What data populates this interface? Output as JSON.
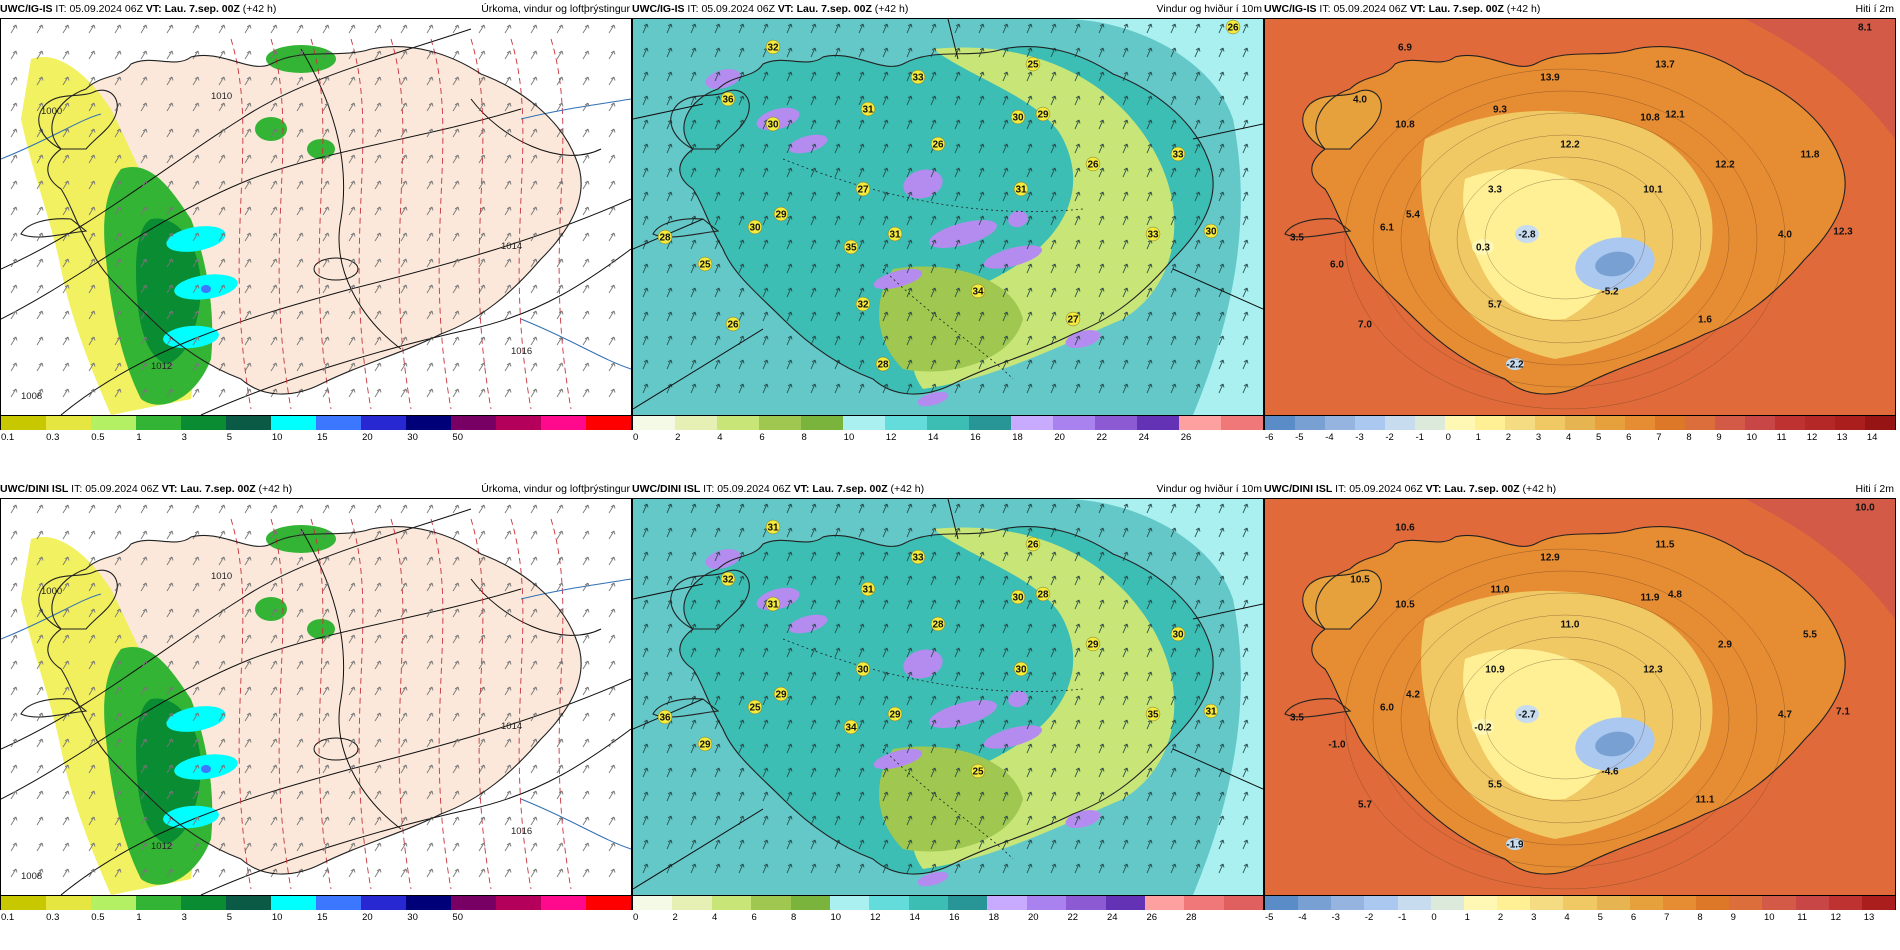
{
  "panels": [
    {
      "id": "top-precip",
      "model": "UWC/IG-IS",
      "run_label": "IT:",
      "run": "05.09.2024 06Z",
      "vt_label": "VT:",
      "vt": "Lau. 7.sep. 00Z",
      "lead": "(+42 h)",
      "variable": "Úrkoma, vindur og loftþrýstingur",
      "type": "precip"
    },
    {
      "id": "top-wind",
      "model": "UWC/IG-IS",
      "run_label": "IT:",
      "run": "05.09.2024 06Z",
      "vt_label": "VT:",
      "vt": "Lau. 7.sep. 00Z",
      "lead": "(+42 h)",
      "variable": "Vindur og hviður í 10m",
      "type": "wind"
    },
    {
      "id": "top-temp",
      "model": "UWC/IG-IS",
      "run_label": "IT:",
      "run": "05.09.2024 06Z",
      "vt_label": "VT:",
      "vt": "Lau. 7.sep. 00Z",
      "lead": "(+42 h)",
      "variable": "Hiti í 2m",
      "type": "temp"
    },
    {
      "id": "bot-precip",
      "model": "UWC/DINI ISL",
      "run_label": "IT:",
      "run": "05.09.2024 06Z",
      "vt_label": "VT:",
      "vt": "Lau. 7.sep. 00Z",
      "lead": "(+42 h)",
      "variable": "Úrkoma, vindur og loftþrýstingur",
      "type": "precip"
    },
    {
      "id": "bot-wind",
      "model": "UWC/DINI ISL",
      "run_label": "IT:",
      "run": "05.09.2024 06Z",
      "vt_label": "VT:",
      "vt": "Lau. 7.sep. 00Z",
      "lead": "(+42 h)",
      "variable": "Vindur og hviður í 10m",
      "type": "wind"
    },
    {
      "id": "bot-temp",
      "model": "UWC/DINI ISL",
      "run_label": "IT:",
      "run": "05.09.2024 06Z",
      "vt_label": "VT:",
      "vt": "Lau. 7.sep. 00Z",
      "lead": "(+42 h)",
      "variable": "Hiti í 2m",
      "type": "temp"
    }
  ],
  "colorbars": {
    "precip": {
      "colors": [
        "#c8c800",
        "#e6e640",
        "#b4f064",
        "#34b434",
        "#0a8c32",
        "#0a5a46",
        "#00ffff",
        "#3c78ff",
        "#2828d2",
        "#000078",
        "#780064",
        "#b4005a",
        "#ff0a8c",
        "#ff0000"
      ],
      "ticks": [
        "0.1",
        "0.3",
        "0.5",
        "1",
        "3",
        "5",
        "10",
        "15",
        "20",
        "30",
        "50"
      ]
    },
    "wind_top": {
      "colors": [
        "#f5fae6",
        "#e6f0b4",
        "#c8e678",
        "#a0c850",
        "#7ab43c",
        "#aaf0f0",
        "#64dcdc",
        "#3cbeb4",
        "#289696",
        "#c8aaff",
        "#aa82f0",
        "#8c5ad2",
        "#6432b4",
        "#ffa0a0",
        "#f07878"
      ],
      "ticks": [
        "0",
        "2",
        "4",
        "6",
        "8",
        "10",
        "12",
        "14",
        "16",
        "18",
        "20",
        "22",
        "24",
        "26"
      ]
    },
    "wind_bot": {
      "colors": [
        "#f5fae6",
        "#e6f0b4",
        "#c8e678",
        "#a0c850",
        "#7ab43c",
        "#aaf0f0",
        "#64dcdc",
        "#3cbeb4",
        "#289696",
        "#c8aaff",
        "#aa82f0",
        "#8c5ad2",
        "#6432b4",
        "#ffa0a0",
        "#f07878",
        "#e06060"
      ],
      "ticks": [
        "0",
        "2",
        "4",
        "6",
        "8",
        "10",
        "12",
        "14",
        "16",
        "18",
        "20",
        "22",
        "24",
        "26",
        "28"
      ]
    },
    "temp_top": {
      "colors": [
        "#5a8cc8",
        "#78a0d2",
        "#96b4e0",
        "#aac8f0",
        "#c8dcf0",
        "#dceadc",
        "#fff8b4",
        "#fff096",
        "#f5dc82",
        "#f0c864",
        "#e6b450",
        "#e6a03c",
        "#e68c32",
        "#dc7828",
        "#dc6e3c",
        "#d25a46",
        "#c84646",
        "#be3232",
        "#b42828",
        "#aa1e1e",
        "#961414"
      ],
      "ticks": [
        "-6",
        "-5",
        "-4",
        "-3",
        "-2",
        "-1",
        "0",
        "1",
        "2",
        "3",
        "4",
        "5",
        "6",
        "7",
        "8",
        "9",
        "10",
        "11",
        "12",
        "13",
        "14"
      ]
    },
    "temp_bot": {
      "colors": [
        "#5a8cc8",
        "#78a0d2",
        "#96b4e0",
        "#aac8f0",
        "#c8dcf0",
        "#dceadc",
        "#fff8b4",
        "#fff096",
        "#f5dc82",
        "#f0c864",
        "#e6b450",
        "#e6a03c",
        "#e68c32",
        "#dc7828",
        "#dc6e3c",
        "#d25a46",
        "#c84646",
        "#be3232",
        "#aa1e1e"
      ],
      "ticks": [
        "-5",
        "-4",
        "-3",
        "-2",
        "-1",
        "0",
        "1",
        "2",
        "3",
        "4",
        "5",
        "6",
        "7",
        "8",
        "9",
        "10",
        "11",
        "12",
        "13"
      ]
    }
  },
  "temp_labels_top": [
    "6.9",
    "4.0",
    "10.8",
    "9.3",
    "13.9",
    "12.2",
    "13.7",
    "12.1",
    "10.8",
    "12.2",
    "3.3",
    "11.8",
    "10.1",
    "5.4",
    "6.1",
    "3.5",
    "0.3",
    "-2.8",
    "12.3",
    "4.0",
    "6.0",
    "-5.2",
    "5.7",
    "7.0",
    "1.6",
    "-2.2",
    "8.1"
  ],
  "temp_labels_bot": [
    "10.6",
    "10.5",
    "10.5",
    "11.0",
    "12.9",
    "11.0",
    "11.5",
    "4.8",
    "11.9",
    "2.9",
    "10.9",
    "5.5",
    "12.3",
    "4.2",
    "6.0",
    "3.5",
    "-0.2",
    "-2.7",
    "7.1",
    "4.7",
    "-1.0",
    "-4.6",
    "5.5",
    "5.7",
    "11.1",
    "-1.9",
    "10.0"
  ],
  "gust_labels_top": [
    "32",
    "36",
    "30",
    "31",
    "33",
    "26",
    "25",
    "29",
    "30",
    "26",
    "27",
    "33",
    "31",
    "29",
    "30",
    "28",
    "35",
    "31",
    "30",
    "33",
    "25",
    "34",
    "32",
    "26",
    "27",
    "28",
    "26"
  ],
  "gust_labels_bot": [
    "31",
    "32",
    "31",
    "31",
    "33",
    "28",
    "26",
    "28",
    "30",
    "29",
    "30",
    "30",
    "30",
    "29",
    "25",
    "36",
    "34",
    "29",
    "31",
    "35",
    "29",
    "25"
  ],
  "pressure_labels": [
    "1000",
    "1008",
    "1010",
    "1012",
    "1014",
    "1016"
  ]
}
